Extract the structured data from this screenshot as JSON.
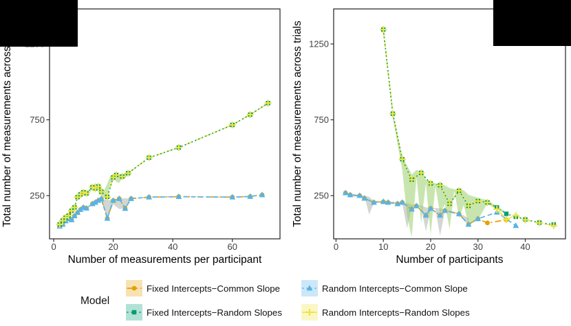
{
  "figure": {
    "y_axis_title": "Total number of measurements across trials",
    "left_x_title": "Number of measurements per participant",
    "right_x_title": "Number of participants"
  },
  "colors": {
    "orange": "#E69F00",
    "green": "#009E73",
    "blue": "#56B4E9",
    "yellow": "#F0E442",
    "green_ribbon": "rgba(148,203,95,0.5)",
    "grey_ribbon": "rgba(125,140,122,0.35)",
    "panel_border": "#2f2f2f",
    "tick_label": "#404040",
    "axis_title": "#000000"
  },
  "legend": {
    "title": "Model",
    "items": [
      {
        "label": "Fixed Intercepts−Common Slope",
        "color": "#E69F00",
        "fill": "#F7E2B3",
        "marker": "circle",
        "dash": "9 4 2.5 4"
      },
      {
        "label": "Random Intercepts−Common Slope",
        "color": "#56B4E9",
        "fill": "#CCE8F8",
        "marker": "triangle",
        "dash": "2 4"
      },
      {
        "label": "Fixed Intercepts−Random Slopes",
        "color": "#009E73",
        "fill": "#B2E2D5",
        "marker": "square",
        "dash": "2 4"
      },
      {
        "label": "Random Intercepts−Random Slopes",
        "color": "#F0E442",
        "fill": "#FAF7C6",
        "marker": "plus",
        "dash": "11 4"
      }
    ]
  },
  "chart_data": [
    {
      "type": "line",
      "title": "",
      "xlabel": "Number of measurements per participant",
      "ylabel": "Total number of measurements across trials",
      "xlim": [
        -1.4,
        76
      ],
      "ylim": [
        -35,
        1481
      ],
      "xticks": [
        0,
        20,
        40,
        60
      ],
      "yticks": [
        250,
        750,
        1250
      ],
      "grid": false,
      "legend_position": "bottom",
      "ribbons": [
        {
          "name": "common-slope-range",
          "fill": "rgba(125,140,122,0.35)",
          "x": [
            13,
            14,
            15,
            16,
            18,
            20,
            22,
            24,
            26
          ],
          "upper": [
            200,
            208,
            220,
            230,
            222,
            222,
            232,
            232,
            234
          ],
          "lower": [
            192,
            200,
            212,
            222,
            102,
            192,
            162,
            167,
            226
          ]
        },
        {
          "name": "random-slopes-range",
          "fill": "rgba(148,203,95,0.5)",
          "x": [
            12,
            13,
            14,
            15,
            16,
            17,
            18,
            19,
            20,
            21,
            22,
            23,
            24,
            25,
            26
          ],
          "upper": [
            272,
            312,
            332,
            318,
            302,
            286,
            330,
            378,
            392,
            392,
            383,
            382,
            400,
            412,
            402
          ],
          "lower": [
            262,
            300,
            272,
            292,
            240,
            232,
            242,
            330,
            362,
            342,
            333,
            370,
            362,
            392,
            393
          ]
        }
      ],
      "series": [
        {
          "name": "Fixed Intercepts−Common Slope",
          "color": "#E69F00",
          "marker": "circle",
          "dash": "9 4 2.5 4",
          "x": [
            2,
            3,
            4,
            5,
            6,
            7,
            8,
            9,
            10,
            11,
            13,
            14,
            15,
            16,
            18,
            20,
            22,
            24,
            26,
            32,
            42,
            60,
            66,
            70
          ],
          "y": [
            48,
            60,
            83,
            98,
            90,
            116,
            138,
            158,
            172,
            167,
            196,
            205,
            218,
            228,
            100,
            218,
            230,
            165,
            230,
            240,
            243,
            240,
            244,
            255
          ]
        },
        {
          "name": "Random Intercepts−Common Slope",
          "color": "#56B4E9",
          "marker": "triangle",
          "dash": "7 4",
          "x": [
            2,
            3,
            4,
            5,
            6,
            7,
            8,
            9,
            10,
            11,
            13,
            14,
            15,
            16,
            18,
            20,
            22,
            24,
            26,
            32,
            42,
            60,
            66,
            70
          ],
          "y": [
            48,
            60,
            83,
            98,
            90,
            116,
            138,
            158,
            172,
            167,
            196,
            205,
            218,
            228,
            100,
            218,
            230,
            165,
            230,
            240,
            243,
            240,
            244,
            255
          ]
        },
        {
          "name": "Random Intercepts−Random Slopes",
          "color": "#F0E442",
          "marker": "plus",
          "dash": "11 4",
          "x": [
            2,
            3,
            4,
            5,
            6,
            7,
            8,
            9,
            10,
            11,
            13,
            14,
            15,
            16,
            18,
            20,
            21,
            23,
            25,
            32,
            42,
            60,
            66,
            72
          ],
          "y": [
            60,
            85,
            105,
            118,
            150,
            172,
            240,
            258,
            272,
            265,
            305,
            298,
            310,
            275,
            242,
            370,
            386,
            376,
            398,
            500,
            567,
            716,
            784,
            860
          ]
        },
        {
          "name": "Fixed Intercepts−Random Slopes",
          "color": "#009E73",
          "marker": "square",
          "dash": "1.8 3.6",
          "x": [
            2,
            3,
            4,
            5,
            6,
            7,
            8,
            9,
            10,
            11,
            13,
            14,
            15,
            16,
            18,
            20,
            21,
            23,
            25,
            32,
            42,
            60,
            66,
            72
          ],
          "y": [
            60,
            85,
            105,
            118,
            150,
            172,
            240,
            258,
            272,
            265,
            305,
            298,
            310,
            275,
            242,
            370,
            386,
            376,
            398,
            500,
            567,
            716,
            784,
            860
          ]
        }
      ]
    },
    {
      "type": "line",
      "title": "",
      "xlabel": "Number of participants",
      "ylabel": "Total number of measurements across trials",
      "xlim": [
        -0.5,
        48.5
      ],
      "ylim": [
        -35,
        1481
      ],
      "xticks": [
        0,
        10,
        20,
        30,
        40
      ],
      "yticks": [
        250,
        750,
        1250
      ],
      "grid": false,
      "legend_position": "bottom",
      "ribbons": [
        {
          "name": "common-slope-range",
          "fill": "rgba(125,140,122,0.35)",
          "x": [
            2,
            4,
            6,
            7,
            8,
            10,
            12,
            14,
            15,
            16,
            17,
            18,
            19,
            20,
            21,
            22,
            23,
            24,
            26,
            28
          ],
          "upper": [
            272,
            258,
            250,
            242,
            215,
            215,
            210,
            208,
            202,
            190,
            188,
            186,
            172,
            170,
            168,
            166,
            158,
            152,
            135,
            102
          ],
          "lower": [
            258,
            242,
            246,
            125,
            202,
            204,
            196,
            198,
            35,
            172,
            180,
            170,
            15,
            158,
            162,
            -15,
            148,
            140,
            122,
            55
          ]
        },
        {
          "name": "random-slopes-range",
          "fill": "rgba(148,203,95,0.5)",
          "x": [
            12,
            14,
            15,
            16,
            17,
            18,
            19,
            20,
            21,
            22,
            23,
            24,
            25,
            26,
            27,
            28,
            30,
            32,
            34,
            36
          ],
          "upper": [
            800,
            500,
            450,
            390,
            420,
            405,
            355,
            340,
            330,
            325,
            318,
            300,
            292,
            290,
            285,
            255,
            235,
            220,
            180,
            140
          ],
          "lower": [
            760,
            420,
            120,
            -25,
            370,
            70,
            330,
            -10,
            312,
            130,
            195,
            30,
            283,
            100,
            188,
            60,
            90,
            200,
            160,
            128
          ]
        }
      ],
      "series": [
        {
          "name": "Fixed Intercepts−Common Slope",
          "color": "#E69F00",
          "marker": "circle",
          "dash": "9 4 2.5 4",
          "x": [
            2,
            3,
            5,
            6,
            8,
            10,
            11,
            13,
            14,
            16,
            17,
            19,
            20,
            22,
            23,
            26,
            28,
            30,
            32,
            36
          ],
          "y": [
            268,
            255,
            250,
            232,
            205,
            210,
            205,
            196,
            205,
            160,
            182,
            120,
            165,
            120,
            151,
            129,
            60,
            97,
            70,
            90
          ]
        },
        {
          "name": "Random Intercepts−Common Slope",
          "color": "#56B4E9",
          "marker": "triangle",
          "dash": "7 4",
          "x": [
            2,
            3,
            5,
            6,
            8,
            10,
            11,
            13,
            14,
            16,
            17,
            19,
            20,
            22,
            23,
            26,
            28,
            30,
            34,
            38
          ],
          "y": [
            268,
            255,
            250,
            232,
            205,
            210,
            205,
            196,
            205,
            160,
            182,
            120,
            165,
            120,
            151,
            129,
            60,
            97,
            140,
            52
          ]
        },
        {
          "name": "Random Intercepts−Random Slopes",
          "color": "#F0E442",
          "marker": "plus",
          "dash": "11 4",
          "x": [
            10,
            12,
            14,
            16,
            18,
            20,
            22,
            24,
            26,
            28,
            30,
            32,
            34,
            36,
            38,
            40,
            43,
            46
          ],
          "y": [
            1345,
            790,
            490,
            355,
            400,
            330,
            318,
            196,
            282,
            182,
            214,
            205,
            160,
            93,
            118,
            90,
            70,
            52
          ]
        },
        {
          "name": "Fixed Intercepts−Random Slopes",
          "color": "#009E73",
          "marker": "square",
          "dash": "1.8 3.6",
          "x": [
            10,
            12,
            14,
            16,
            18,
            20,
            22,
            24,
            26,
            28,
            30,
            32,
            34,
            36,
            38,
            40,
            43,
            46
          ],
          "y": [
            1345,
            790,
            490,
            355,
            400,
            330,
            318,
            196,
            282,
            182,
            214,
            205,
            172,
            130,
            110,
            93,
            72,
            60
          ]
        }
      ]
    }
  ]
}
